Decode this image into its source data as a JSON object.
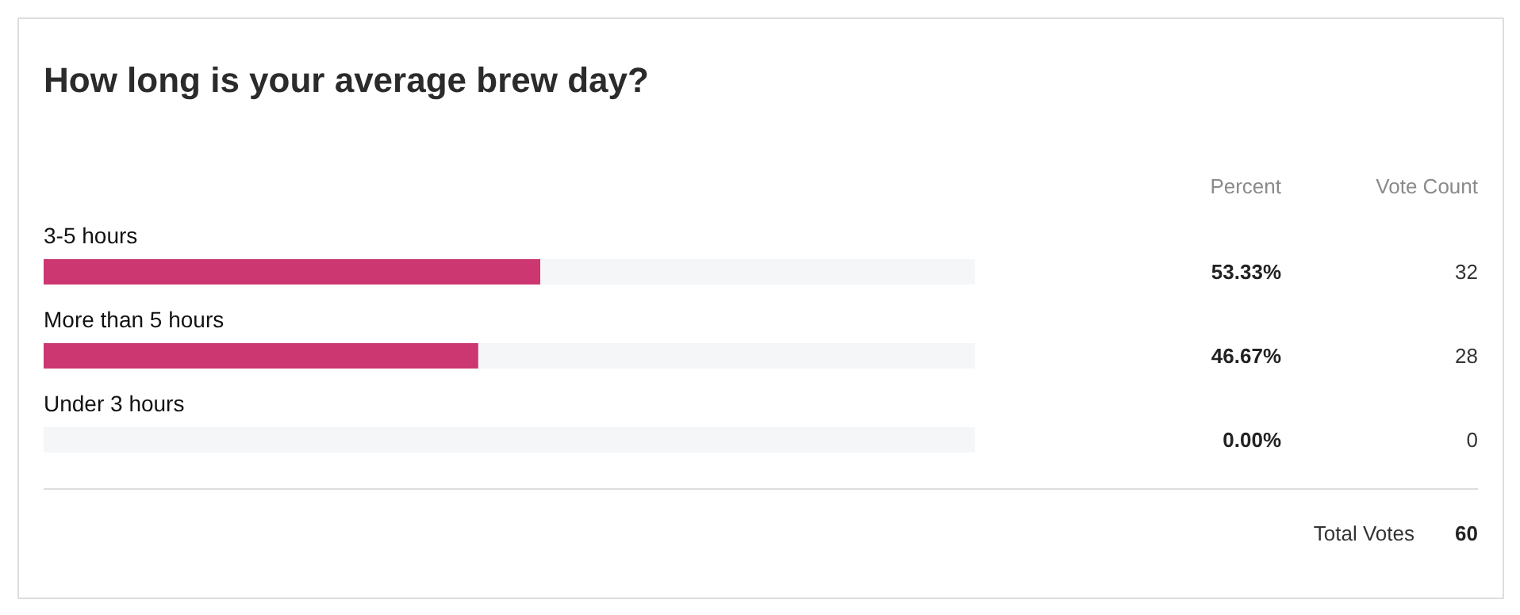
{
  "chart_data": {
    "type": "bar",
    "orientation": "horizontal",
    "stacked": true,
    "title": "How long is your average brew day?",
    "categories": [
      "3-5 hours",
      "More than 5 hours",
      "Under 3 hours"
    ],
    "series": [
      {
        "color": "#cc3671",
        "values": [
          53.33,
          46.67,
          0.0
        ],
        "value_labels": [
          "53.33%",
          "46.67%",
          "0.00%"
        ]
      },
      {
        "color": "#f5f6f7",
        "values": [
          46.67,
          53.33,
          100.0
        ]
      }
    ],
    "annotations": [
      "Percent",
      "Vote Count",
      "32",
      "28",
      "0",
      "Total Votes",
      "60"
    ],
    "grid": false
  }
}
